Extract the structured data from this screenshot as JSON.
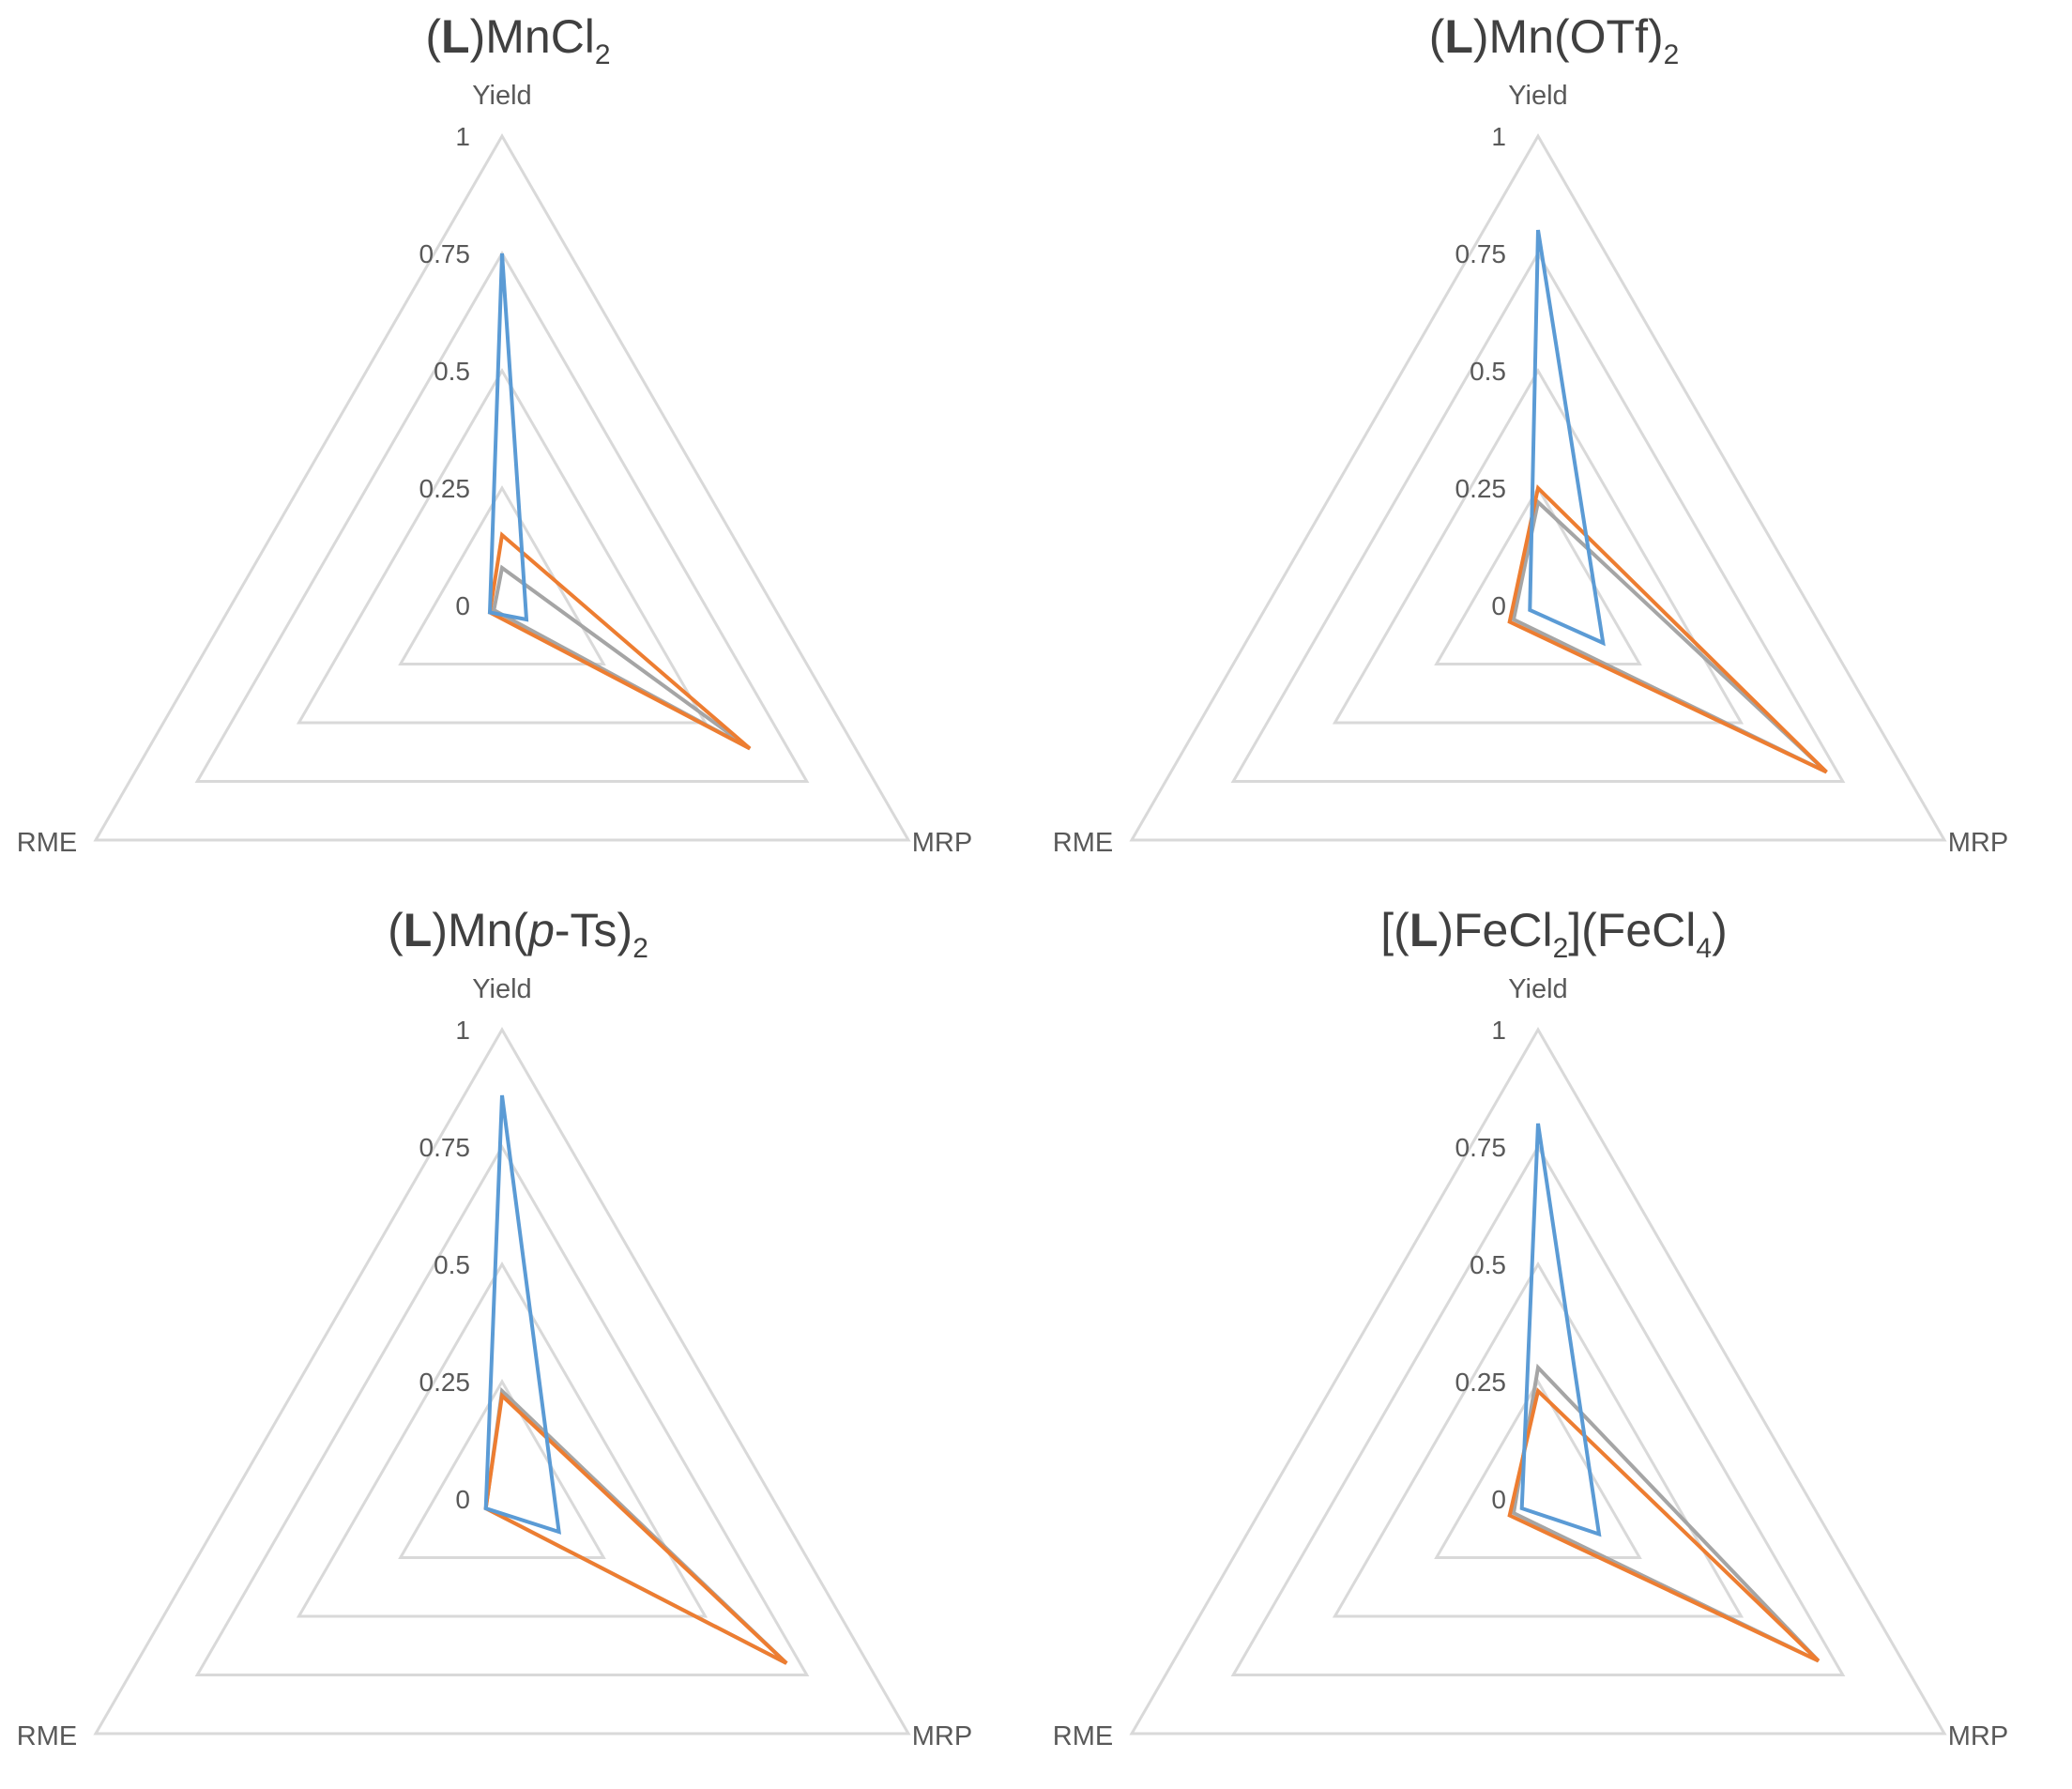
{
  "colors": {
    "series": [
      "#5b9bd5",
      "#ed7d31",
      "#a5a5a5"
    ],
    "grid": "#d9d9d9",
    "text": "#595959"
  },
  "chart_data": [
    {
      "type": "radar",
      "title": "",
      "title_parts": [
        {
          "text": "(",
          "style": "normal"
        },
        {
          "text": "L",
          "style": "bold"
        },
        {
          "text": ")MnCl",
          "style": "normal"
        },
        {
          "text": "2",
          "style": "sub"
        }
      ],
      "axes": [
        "Yield",
        "MRP",
        "RME"
      ],
      "ticks": [
        "0",
        "0.25",
        "0.5",
        "0.75",
        "1"
      ],
      "range": [
        0,
        1
      ],
      "legend": "none",
      "series": [
        {
          "color": "#5b9bd5",
          "values": [
            0.75,
            0.06,
            0.03
          ]
        },
        {
          "color": "#ed7d31",
          "values": [
            0.15,
            0.61,
            0.03
          ]
        },
        {
          "color": "#a5a5a5",
          "values": [
            0.08,
            0.61,
            0.02
          ]
        }
      ]
    },
    {
      "type": "radar",
      "title": "",
      "title_parts": [
        {
          "text": "(",
          "style": "normal"
        },
        {
          "text": "L",
          "style": "bold"
        },
        {
          "text": ")Mn(OTf)",
          "style": "normal"
        },
        {
          "text": "2",
          "style": "sub"
        }
      ],
      "axes": [
        "Yield",
        "MRP",
        "RME"
      ],
      "ticks": [
        "0",
        "0.25",
        "0.5",
        "0.75",
        "1"
      ],
      "range": [
        0,
        1
      ],
      "legend": "none",
      "series": [
        {
          "color": "#5b9bd5",
          "values": [
            0.8,
            0.16,
            0.02
          ]
        },
        {
          "color": "#ed7d31",
          "values": [
            0.25,
            0.71,
            0.07
          ]
        },
        {
          "color": "#a5a5a5",
          "values": [
            0.22,
            0.71,
            0.06
          ]
        }
      ]
    },
    {
      "type": "radar",
      "title": "",
      "title_parts": [
        {
          "text": "(",
          "style": "normal"
        },
        {
          "text": "L",
          "style": "bold"
        },
        {
          "text": ")Mn(",
          "style": "normal"
        },
        {
          "text": "p",
          "style": "italic"
        },
        {
          "text": "-Ts)",
          "style": "normal"
        },
        {
          "text": "2",
          "style": "sub"
        }
      ],
      "axes": [
        "Yield",
        "MRP",
        "RME"
      ],
      "ticks": [
        "0",
        "0.25",
        "0.5",
        "0.75",
        "1"
      ],
      "range": [
        0,
        1
      ],
      "legend": "none",
      "series": [
        {
          "color": "#5b9bd5",
          "values": [
            0.86,
            0.14,
            0.04
          ]
        },
        {
          "color": "#ed7d31",
          "values": [
            0.22,
            0.7,
            0.04
          ]
        },
        {
          "color": "#a5a5a5",
          "values": [
            0.23,
            0.7,
            0.04
          ]
        }
      ]
    },
    {
      "type": "radar",
      "title": "",
      "title_parts": [
        {
          "text": "[(",
          "style": "normal"
        },
        {
          "text": "L",
          "style": "bold"
        },
        {
          "text": ")FeCl",
          "style": "normal"
        },
        {
          "text": "2",
          "style": "sub"
        },
        {
          "text": "](FeCl",
          "style": "normal"
        },
        {
          "text": "4",
          "style": "sub"
        },
        {
          "text": ")",
          "style": "normal"
        }
      ],
      "axes": [
        "Yield",
        "MRP",
        "RME"
      ],
      "ticks": [
        "0",
        "0.25",
        "0.5",
        "0.75",
        "1"
      ],
      "range": [
        0,
        1
      ],
      "legend": "none",
      "series": [
        {
          "color": "#5b9bd5",
          "values": [
            0.8,
            0.15,
            0.04
          ]
        },
        {
          "color": "#ed7d31",
          "values": [
            0.23,
            0.69,
            0.07
          ]
        },
        {
          "color": "#a5a5a5",
          "values": [
            0.28,
            0.69,
            0.06
          ]
        }
      ]
    }
  ]
}
